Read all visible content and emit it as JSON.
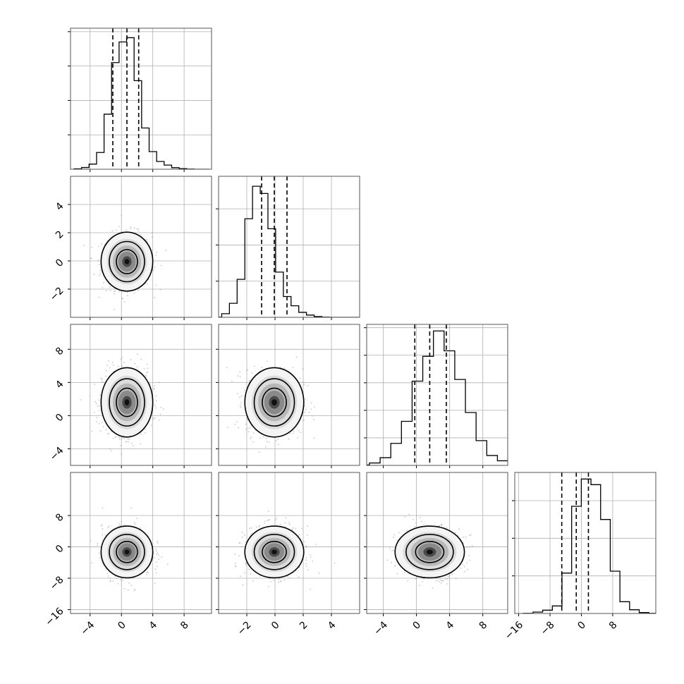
{
  "chart_data": {
    "type": "corner",
    "colors": {
      "line": "#000000",
      "grid": "#b0b0b0",
      "points": "#9a9a9a",
      "quantile": "#000000"
    },
    "grid": true,
    "params": [
      {
        "range": [
          -6.5,
          11.5
        ],
        "ticks": [
          -4,
          0,
          4,
          8
        ],
        "tick_labels": [
          "−4",
          "0",
          "4",
          "8"
        ]
      },
      {
        "range": [
          -4.0,
          6.0
        ],
        "ticks": [
          -2,
          0,
          2,
          4
        ],
        "tick_labels": [
          "−2",
          "0",
          "2",
          "4"
        ]
      },
      {
        "range": [
          -6.0,
          11.0
        ],
        "ticks": [
          -4,
          0,
          4,
          8
        ],
        "tick_labels": [
          "−4",
          "0",
          "4",
          "8"
        ]
      },
      {
        "range": [
          -17.0,
          19.0
        ],
        "ticks": [
          -16,
          -8,
          0,
          8
        ],
        "tick_labels": [
          "−16",
          "−8",
          "0",
          "8"
        ]
      }
    ],
    "quantiles": [
      [
        -1.1,
        0.7,
        2.2
      ],
      [
        -0.95,
        -0.05,
        0.85
      ],
      [
        -0.2,
        1.6,
        3.6
      ],
      [
        -5.0,
        -1.3,
        1.8
      ]
    ],
    "histograms": [
      {
        "counts": [
          5,
          20,
          60,
          195,
          640,
          1240,
          1480,
          1530,
          1030,
          480,
          205,
          90,
          48,
          18,
          7,
          2,
          0,
          0
        ],
        "ymax": 1640,
        "ytick_step": 400
      },
      {
        "counts": [
          2,
          40,
          155,
          420,
          1090,
          1450,
          1370,
          980,
          500,
          230,
          128,
          55,
          25,
          9,
          2,
          0,
          0,
          0,
          0,
          0
        ],
        "ymax": 1560,
        "ytick_step": 400
      },
      {
        "counts": [
          4,
          22,
          70,
          200,
          400,
          765,
          990,
          1220,
          1040,
          780,
          480,
          225,
          90,
          42,
          12,
          4,
          1
        ],
        "ymax": 1280,
        "ytick_step": 250
      },
      {
        "counts": [
          2,
          15,
          35,
          80,
          430,
          1140,
          1430,
          1370,
          1000,
          450,
          125,
          40,
          10,
          2
        ],
        "ymax": 1500,
        "ytick_step": 400
      }
    ],
    "mean": [
      0.7,
      -0.05,
      1.6,
      -1.3
    ],
    "sd": [
      1.5,
      0.95,
      1.9,
      3.0
    ]
  }
}
